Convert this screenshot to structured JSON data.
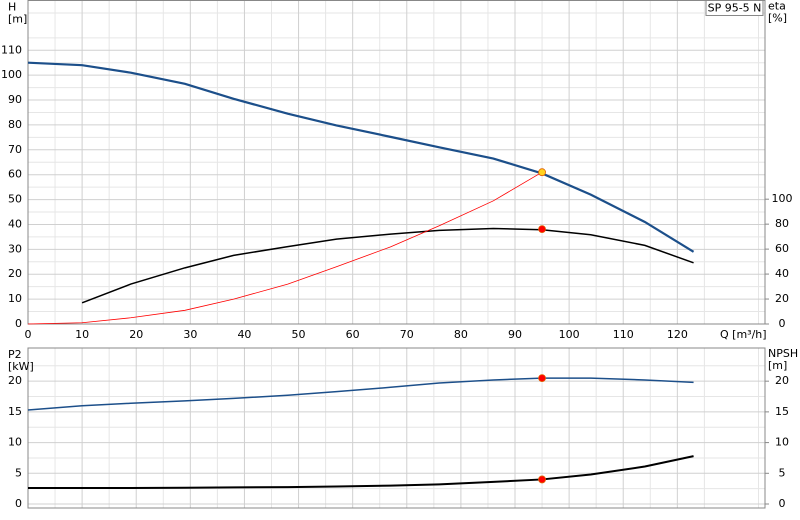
{
  "chart_data": [
    {
      "type": "line",
      "title": "SP 95-5 N",
      "ylabel": "H",
      "yunit": "[m]",
      "y2label": "eta",
      "y2unit": "[%]",
      "xlabel": "Q [m³/h]",
      "xlim": [
        0,
        136.2
      ],
      "xticks": [
        0,
        10,
        20,
        30,
        40,
        50,
        60,
        70,
        80,
        90,
        100,
        110,
        120
      ],
      "xticklabels": true,
      "xminor": [
        5,
        15,
        25,
        35,
        45,
        55,
        65,
        75,
        85,
        95,
        105,
        115,
        125,
        135
      ],
      "ylim": [
        0,
        130
      ],
      "yticks": [
        0,
        10,
        20,
        30,
        40,
        50,
        60,
        70,
        80,
        90,
        100,
        110
      ],
      "yminor": [
        5,
        15,
        25,
        35,
        45,
        55,
        65,
        75,
        85,
        95,
        105,
        115,
        125
      ],
      "y2lim": [
        0,
        259.2
      ],
      "y2ticks": [
        0,
        20,
        40,
        60,
        80,
        100
      ],
      "series": [
        {
          "color": "#1c4f8a",
          "width": 2.2,
          "x": [
            0,
            10,
            19,
            29,
            38,
            48,
            57,
            67,
            76,
            86,
            95,
            104,
            114,
            123
          ],
          "values": [
            105,
            104,
            101,
            96.5,
            90.5,
            84.5,
            79.8,
            75.2,
            71,
            66.5,
            60.5,
            52,
            41,
            29
          ]
        },
        {
          "color": "#000000",
          "width": 1.5,
          "axis": "y2",
          "x": [
            10,
            19,
            29,
            38,
            48,
            57,
            67,
            76,
            86,
            95,
            104,
            114,
            123
          ],
          "values": [
            17,
            32,
            45,
            55,
            62,
            68,
            72,
            75,
            76.5,
            75.5,
            71.5,
            63,
            49
          ]
        },
        {
          "color": "#ff0000",
          "width": 0.8,
          "x": [
            0,
            10,
            19,
            29,
            38,
            48,
            57,
            67,
            76,
            86,
            95
          ],
          "values": [
            0,
            0.5,
            2.5,
            5.5,
            10,
            16,
            23,
            31,
            39.5,
            49.5,
            61
          ]
        },
        {
          "color": "#ffd21f",
          "style": "marker",
          "x": [
            95
          ],
          "values": [
            61
          ]
        },
        {
          "color": "#ff0000",
          "style": "marker",
          "axis": "y2",
          "x": [
            95
          ],
          "values": [
            76
          ]
        }
      ]
    },
    {
      "type": "line",
      "ylabel": "P2",
      "yunit": "[kW]",
      "y2label": "NPSH",
      "y2unit": "[m]",
      "xlim": [
        0,
        136.2
      ],
      "xticks": [
        0,
        10,
        20,
        30,
        40,
        50,
        60,
        70,
        80,
        90,
        100,
        110,
        120
      ],
      "xticklabels": false,
      "xminor": [
        5,
        15,
        25,
        35,
        45,
        55,
        65,
        75,
        85,
        95,
        105,
        115,
        125,
        135
      ],
      "ylim": [
        -0.65,
        25.4
      ],
      "yticks": [
        0,
        5,
        10,
        15,
        20
      ],
      "yminor": [
        2.5,
        7.5,
        12.5,
        17.5,
        22.5
      ],
      "y2lim": [
        -0.65,
        25.4
      ],
      "y2ticks": [
        0,
        5,
        10,
        15,
        20
      ],
      "series": [
        {
          "color": "#1c4f8a",
          "width": 1.5,
          "x": [
            0,
            10,
            19,
            29,
            38,
            48,
            57,
            67,
            76,
            86,
            95,
            104,
            114,
            123
          ],
          "values": [
            15.3,
            16,
            16.4,
            16.8,
            17.2,
            17.7,
            18.3,
            19,
            19.7,
            20.2,
            20.5,
            20.5,
            20.2,
            19.8
          ]
        },
        {
          "color": "#000000",
          "width": 2,
          "axis": "y2",
          "x": [
            0,
            10,
            19,
            29,
            38,
            48,
            57,
            67,
            76,
            86,
            95,
            104,
            114,
            123
          ],
          "values": [
            2.6,
            2.6,
            2.6,
            2.65,
            2.7,
            2.75,
            2.85,
            3,
            3.2,
            3.6,
            4,
            4.8,
            6.1,
            7.8
          ]
        },
        {
          "color": "#ff0000",
          "style": "marker",
          "x": [
            95
          ],
          "values": [
            20.5
          ]
        },
        {
          "color": "#ff0000",
          "style": "marker",
          "axis": "y2",
          "x": [
            95
          ],
          "values": [
            4
          ]
        }
      ]
    }
  ]
}
